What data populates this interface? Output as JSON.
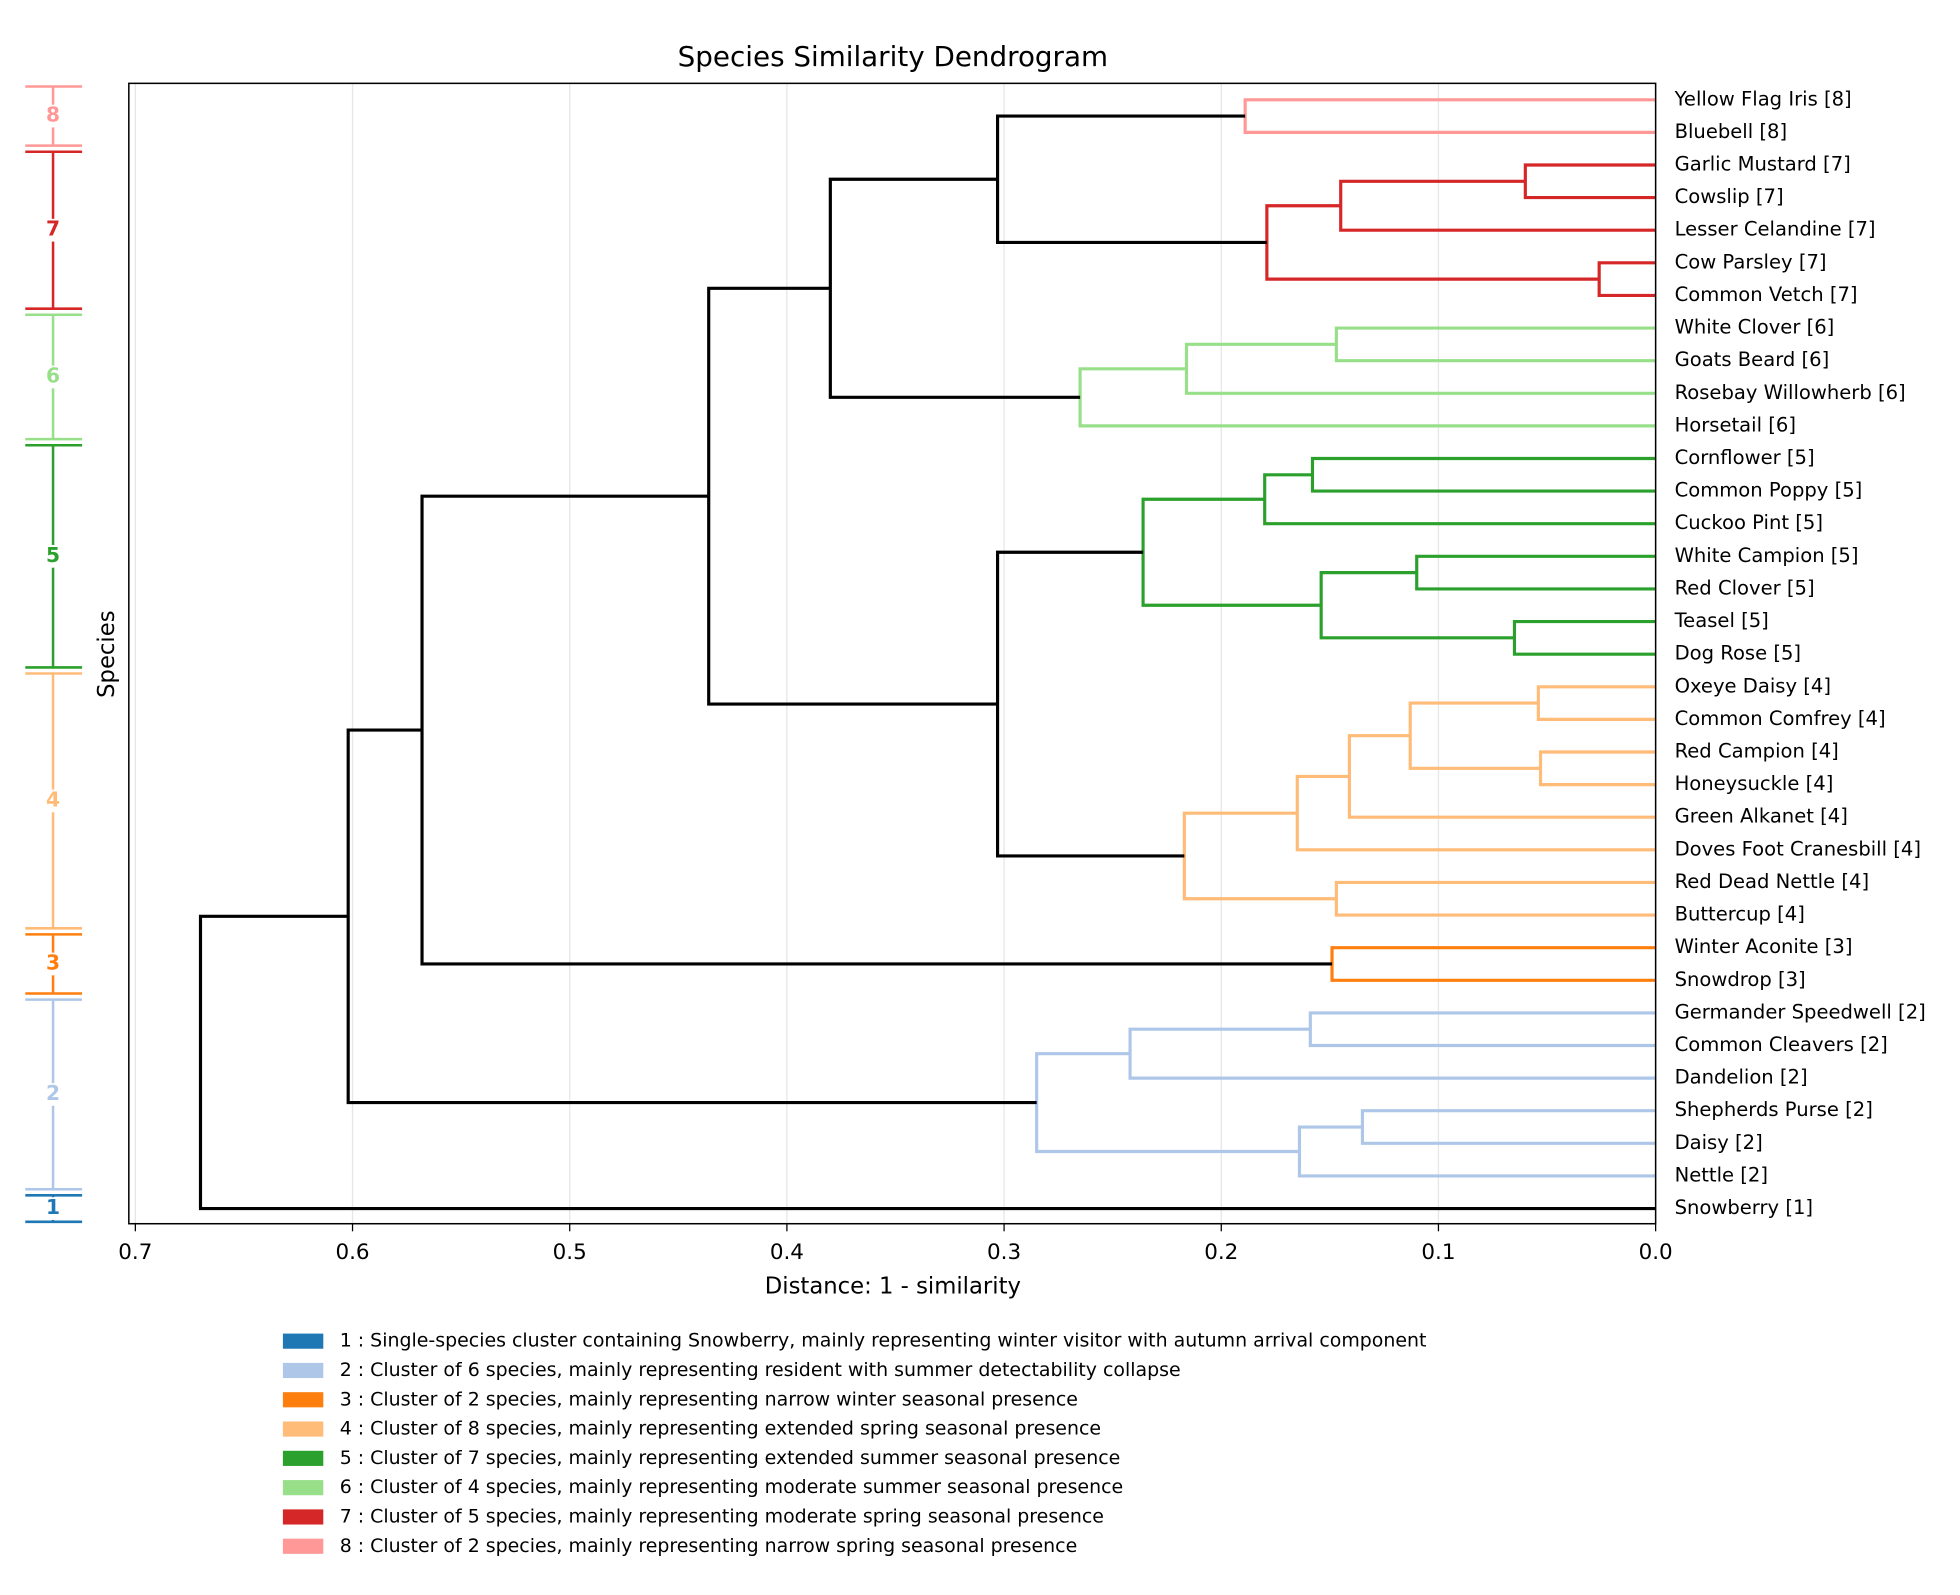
{
  "chart_data": {
    "type": "dendrogram",
    "title": "Species Similarity Dendrogram",
    "xlabel": "Distance: 1 - similarity",
    "ylabel": "Species",
    "xlim": [
      0.703,
      0
    ],
    "xticks": [
      0.7,
      0.6,
      0.5,
      0.4,
      0.3,
      0.2,
      0.1,
      {
        "value": 0,
        "label": "0.0"
      }
    ],
    "grid": true,
    "link_color": "#000000",
    "leaves": [
      "Yellow Flag Iris [8]",
      "Bluebell [8]",
      "Garlic Mustard [7]",
      "Cowslip [7]",
      "Lesser Celandine [7]",
      "Cow Parsley [7]",
      "Common Vetch [7]",
      "White Clover [6]",
      "Goats Beard [6]",
      "Rosebay Willowherb [6]",
      "Horsetail [6]",
      "Cornflower [5]",
      "Common Poppy [5]",
      "Cuckoo Pint [5]",
      "White Campion [5]",
      "Red Clover [5]",
      "Teasel [5]",
      "Dog Rose [5]",
      "Oxeye Daisy [4]",
      "Common Comfrey [4]",
      "Red Campion [4]",
      "Honeysuckle [4]",
      "Green Alkanet [4]",
      "Doves Foot Cranesbill [4]",
      "Red Dead Nettle [4]",
      "Buttercup [4]",
      "Winter Aconite [3]",
      "Snowdrop [3]",
      "Germander Speedwell [2]",
      "Common Cleavers [2]",
      "Dandelion [2]",
      "Shepherds Purse [2]",
      "Daisy [2]",
      "Nettle [2]",
      "Snowberry [1]"
    ],
    "merges": [
      {
        "children": [
          0,
          1
        ],
        "distance": 0.189
      },
      {
        "children": [
          2,
          3
        ],
        "distance": 0.06
      },
      {
        "children": [
          5,
          6
        ],
        "distance": 0.026
      },
      {
        "children": [
          36,
          4
        ],
        "distance": 0.145
      },
      {
        "children": [
          38,
          37
        ],
        "distance": 0.179
      },
      {
        "children": [
          7,
          8
        ],
        "distance": 0.147
      },
      {
        "children": [
          40,
          9
        ],
        "distance": 0.216
      },
      {
        "children": [
          41,
          10
        ],
        "distance": 0.265
      },
      {
        "children": [
          35,
          39
        ],
        "distance": 0.303
      },
      {
        "children": [
          43,
          42
        ],
        "distance": 0.38
      },
      {
        "children": [
          11,
          12
        ],
        "distance": 0.158
      },
      {
        "children": [
          45,
          13
        ],
        "distance": 0.18
      },
      {
        "children": [
          14,
          15
        ],
        "distance": 0.11
      },
      {
        "children": [
          16,
          17
        ],
        "distance": 0.065
      },
      {
        "children": [
          47,
          48
        ],
        "distance": 0.154
      },
      {
        "children": [
          46,
          49
        ],
        "distance": 0.236
      },
      {
        "children": [
          18,
          19
        ],
        "distance": 0.054
      },
      {
        "children": [
          20,
          21
        ],
        "distance": 0.053
      },
      {
        "children": [
          51,
          52
        ],
        "distance": 0.113
      },
      {
        "children": [
          53,
          22
        ],
        "distance": 0.141
      },
      {
        "children": [
          54,
          23
        ],
        "distance": 0.165
      },
      {
        "children": [
          24,
          25
        ],
        "distance": 0.147
      },
      {
        "children": [
          55,
          56
        ],
        "distance": 0.217
      },
      {
        "children": [
          50,
          57
        ],
        "distance": 0.303
      },
      {
        "children": [
          44,
          58
        ],
        "distance": 0.436
      },
      {
        "children": [
          26,
          27
        ],
        "distance": 0.149
      },
      {
        "children": [
          59,
          60
        ],
        "distance": 0.568
      },
      {
        "children": [
          28,
          29
        ],
        "distance": 0.159
      },
      {
        "children": [
          62,
          30
        ],
        "distance": 0.242
      },
      {
        "children": [
          31,
          32
        ],
        "distance": 0.135
      },
      {
        "children": [
          64,
          33
        ],
        "distance": 0.164
      },
      {
        "children": [
          63,
          65
        ],
        "distance": 0.285
      },
      {
        "children": [
          61,
          66
        ],
        "distance": 0.602
      },
      {
        "children": [
          67,
          34
        ],
        "distance": 0.67
      }
    ],
    "clusters": [
      {
        "label": "1",
        "color": "#1f77b4",
        "leaves": [
          34
        ],
        "description": "1 : Single-species cluster containing Snowberry, mainly representing winter visitor with autumn arrival component"
      },
      {
        "label": "2",
        "color": "#aec7e8",
        "leaves": [
          28,
          29,
          30,
          31,
          32,
          33
        ],
        "description": "2 : Cluster of 6 species, mainly representing resident with summer detectability collapse"
      },
      {
        "label": "3",
        "color": "#ff7f0e",
        "leaves": [
          26,
          27
        ],
        "description": "3 : Cluster of 2 species, mainly representing narrow winter seasonal presence"
      },
      {
        "label": "4",
        "color": "#ffbb78",
        "leaves": [
          18,
          19,
          20,
          21,
          22,
          23,
          24,
          25
        ],
        "description": "4 : Cluster of 8 species, mainly representing extended spring seasonal presence"
      },
      {
        "label": "5",
        "color": "#2ca02c",
        "leaves": [
          11,
          12,
          13,
          14,
          15,
          16,
          17
        ],
        "description": "5 : Cluster of 7 species, mainly representing extended summer seasonal presence"
      },
      {
        "label": "6",
        "color": "#98df8a",
        "leaves": [
          7,
          8,
          9,
          10
        ],
        "description": "6 : Cluster of 4 species, mainly representing moderate summer seasonal presence"
      },
      {
        "label": "7",
        "color": "#d62728",
        "leaves": [
          2,
          3,
          4,
          5,
          6
        ],
        "description": "7 : Cluster of 5 species, mainly representing moderate spring seasonal presence"
      },
      {
        "label": "8",
        "color": "#ff9896",
        "leaves": [
          0,
          1
        ],
        "description": "8 : Cluster of 2 species, mainly representing narrow spring seasonal presence"
      }
    ]
  }
}
